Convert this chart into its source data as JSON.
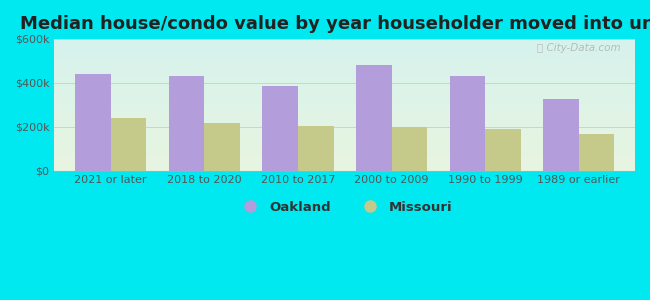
{
  "title": "Median house/condo value by year householder moved into unit",
  "categories": [
    "2021 or later",
    "2018 to 2020",
    "2010 to 2017",
    "2000 to 2009",
    "1990 to 1999",
    "1989 or earlier"
  ],
  "oakland_values": [
    440000,
    430000,
    385000,
    480000,
    430000,
    325000
  ],
  "missouri_values": [
    240000,
    215000,
    205000,
    200000,
    190000,
    165000
  ],
  "oakland_color": "#b39ddb",
  "missouri_color": "#c5c98a",
  "background_outer": "#00e8f0",
  "background_inner_top": "#d6f0ee",
  "background_inner_bottom": "#e8f5e0",
  "ylim": [
    0,
    600000
  ],
  "yticks": [
    0,
    200000,
    400000,
    600000
  ],
  "ytick_labels": [
    "$0",
    "$200k",
    "$400k",
    "$600k"
  ],
  "legend_labels": [
    "Oakland",
    "Missouri"
  ],
  "bar_width": 0.38,
  "title_fontsize": 13,
  "tick_fontsize": 8,
  "legend_fontsize": 9.5,
  "watermark": "City-Data.com"
}
